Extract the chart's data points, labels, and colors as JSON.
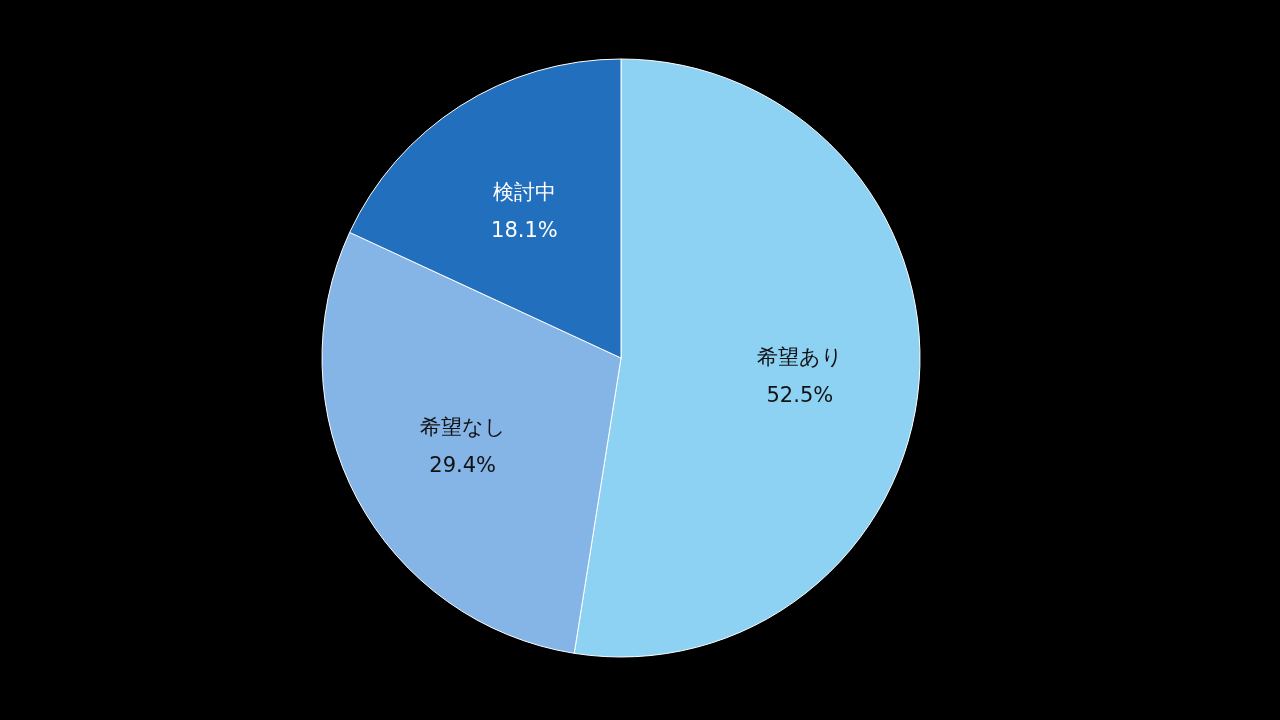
{
  "chart_data": {
    "type": "pie",
    "categories": [
      "希望あり",
      "希望なし",
      "検討中"
    ],
    "values": [
      52.5,
      29.4,
      18.1
    ],
    "colors": [
      "#8dd1f3",
      "#85b4e6",
      "#226fbd"
    ],
    "value_labels": [
      "52.5%",
      "29.4%",
      "18.1%"
    ]
  }
}
